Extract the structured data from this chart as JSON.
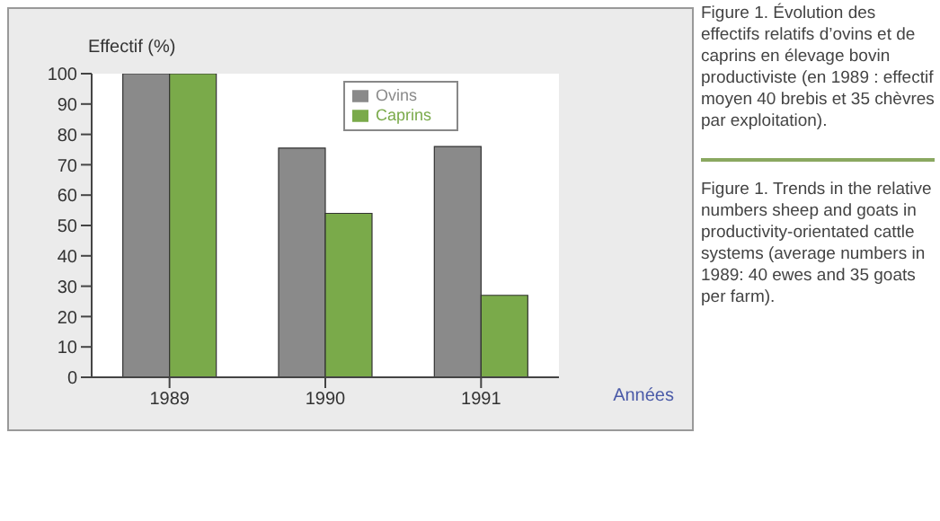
{
  "chart_data": {
    "type": "bar",
    "ylabel": "Effectif (%)",
    "xlabel": "Années",
    "categories": [
      "1989",
      "1990",
      "1991"
    ],
    "series": [
      {
        "name": "Ovins",
        "color": "#8a8a8a",
        "values": [
          100,
          75.5,
          76
        ]
      },
      {
        "name": "Caprins",
        "color": "#7aaa4a",
        "values": [
          100,
          54,
          27
        ]
      }
    ],
    "ylim": [
      0,
      100
    ],
    "yticks": [
      0,
      10,
      20,
      30,
      40,
      50,
      60,
      70,
      80,
      90,
      100
    ],
    "grid": false,
    "legend": "top right",
    "annotations": [
      "Figure 1. Évolution des effectifs relatifs d’ovins et de caprins en élevage bovin productiviste (en 1989 : effectif moyen 40 brebis et 35 chèvres par exploitation).",
      "Figure 1. Trends in the relative numbers sheep and goats in productivity-orientated cattle systems (average numbers in 1989: 40 ewes and 35 goats per farm)."
    ]
  }
}
